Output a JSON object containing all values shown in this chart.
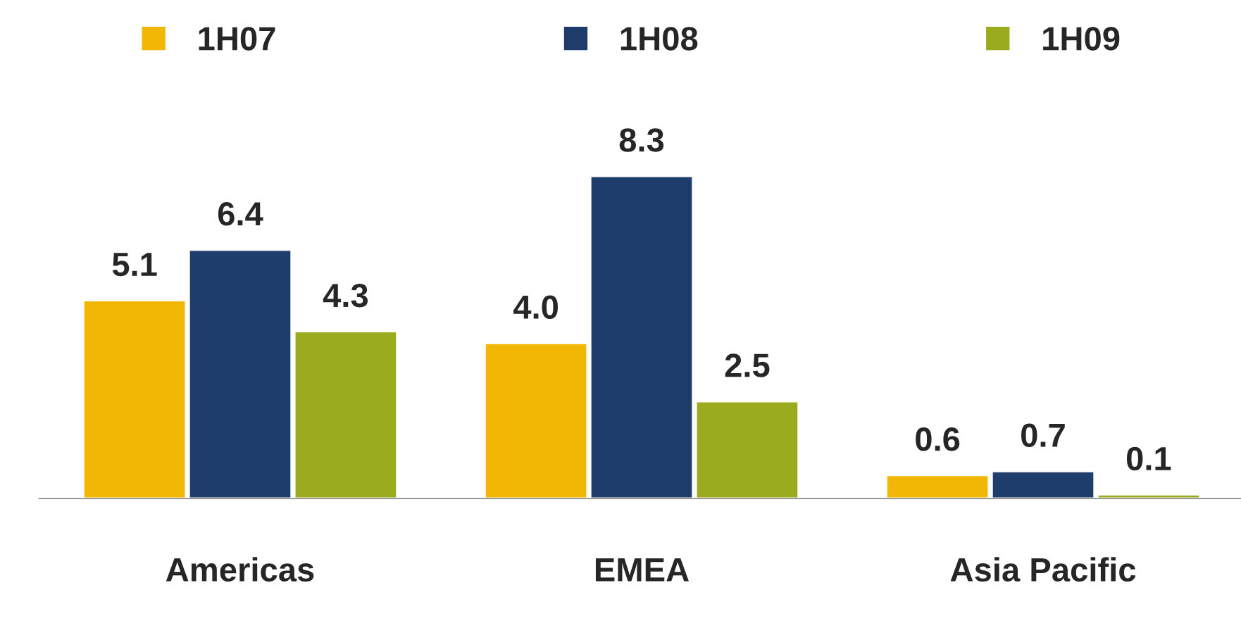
{
  "chart_data": {
    "type": "bar",
    "categories": [
      "Americas",
      "EMEA",
      "Asia Pacific"
    ],
    "series": [
      {
        "name": "1H07",
        "color": "#f2b705",
        "values": [
          5.1,
          4.0,
          0.6
        ],
        "value_labels": [
          "5.1",
          "4.0",
          "0.6"
        ]
      },
      {
        "name": "1H08",
        "color": "#1f3d6b",
        "values": [
          6.4,
          8.3,
          0.7
        ],
        "value_labels": [
          "6.4",
          "8.3",
          "0.7"
        ]
      },
      {
        "name": "1H09",
        "color": "#9aab1e",
        "values": [
          4.3,
          2.5,
          0.1
        ],
        "value_labels": [
          "4.3",
          "2.5",
          "0.1"
        ]
      }
    ],
    "legend": "top",
    "grid": false
  }
}
